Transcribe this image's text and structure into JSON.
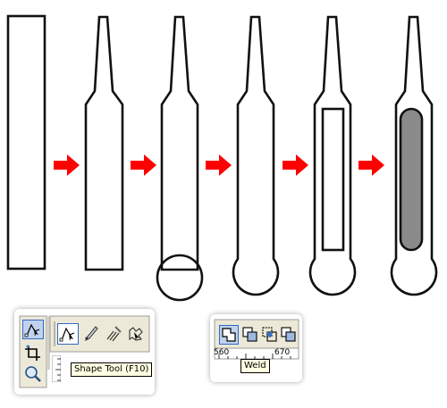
{
  "steps": [
    {
      "id": "rectangle"
    },
    {
      "id": "tapered-shape"
    },
    {
      "id": "shape-with-circle"
    },
    {
      "id": "welded-shape"
    },
    {
      "id": "shape-with-inner-rectangle"
    },
    {
      "id": "shape-with-gray-fill"
    }
  ],
  "colors": {
    "arrow": "#ff0000",
    "outline": "#111111",
    "fill_gray": "#8a8a8a",
    "tooltip_bg": "#ffffe1",
    "toolbar_bg": "#ece9d8",
    "toolbar_pressed": "#c1d2ee"
  },
  "shape_tool_panel": {
    "tooltip": "Shape Tool (F10)",
    "icons": [
      "shape-tool-icon",
      "crop-tool-icon",
      "zoom-tool-icon",
      "knife-tool-icon",
      "smudge-tool-icon",
      "roughen-tool-icon",
      "transform-tool-icon"
    ]
  },
  "weld_panel": {
    "tooltip": "Weld",
    "ruler_labels": [
      "560",
      "670"
    ],
    "icons": [
      "weld-icon",
      "trim-icon",
      "intersect-icon",
      "simplify-icon"
    ]
  }
}
